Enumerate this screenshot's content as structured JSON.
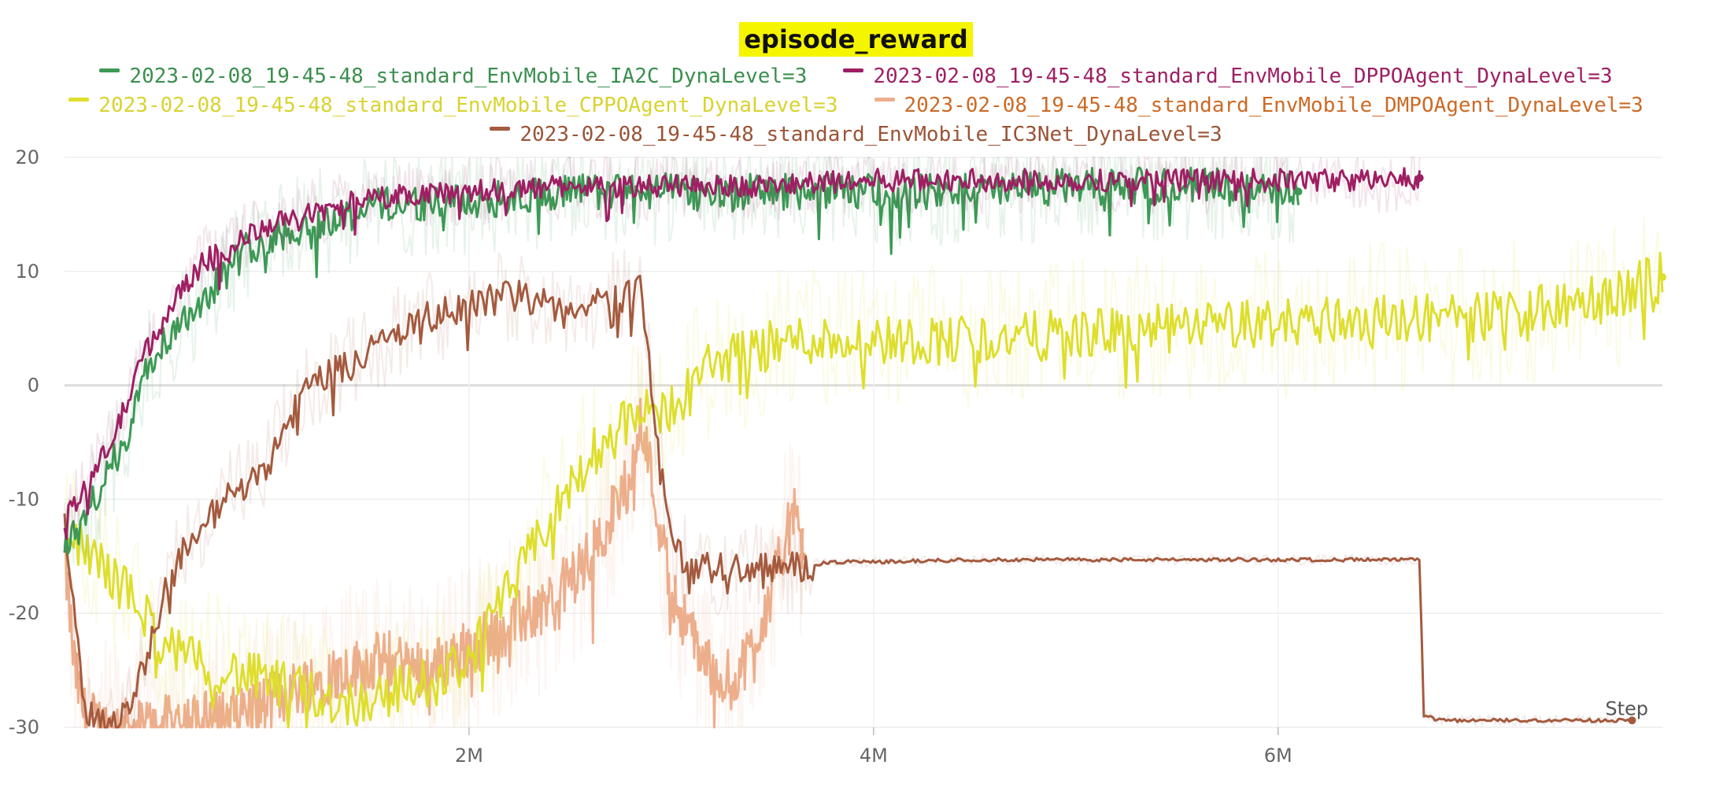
{
  "chart_data": {
    "type": "line",
    "title": "episode_reward",
    "xlabel": "Step",
    "ylabel": "",
    "xlim": [
      0,
      7900000
    ],
    "ylim": [
      -30,
      20
    ],
    "x_ticks": [
      2000000,
      4000000,
      6000000
    ],
    "x_tick_labels": [
      "2M",
      "4M",
      "6M"
    ],
    "y_ticks": [
      -30,
      -20,
      -10,
      0,
      10,
      20
    ],
    "y_tick_labels": [
      "-30",
      "-20",
      "-10",
      "0",
      "10",
      "20"
    ],
    "grid": true,
    "legend_position": "top",
    "series": [
      {
        "name": "2023-02-08_19-45-48_standard_EnvMobile_IA2C_DynaLevel=3",
        "color": "#3c9a55",
        "label_color": "#3a8f4e",
        "points": [
          [
            0,
            -14
          ],
          [
            100000,
            -12
          ],
          [
            200000,
            -8
          ],
          [
            300000,
            -5
          ],
          [
            400000,
            2
          ],
          [
            500000,
            4
          ],
          [
            600000,
            6
          ],
          [
            700000,
            8
          ],
          [
            800000,
            10
          ],
          [
            900000,
            12
          ],
          [
            1000000,
            13
          ],
          [
            1200000,
            14
          ],
          [
            1400000,
            15
          ],
          [
            1600000,
            16
          ],
          [
            1800000,
            16
          ],
          [
            2000000,
            16
          ],
          [
            2200000,
            16.5
          ],
          [
            2500000,
            17
          ],
          [
            3000000,
            17
          ],
          [
            3500000,
            17
          ],
          [
            4000000,
            17
          ],
          [
            4500000,
            17
          ],
          [
            5000000,
            17.5
          ],
          [
            5500000,
            17.5
          ],
          [
            6000000,
            17.5
          ],
          [
            6100000,
            17
          ]
        ]
      },
      {
        "name": "2023-02-08_19-45-48_standard_EnvMobile_DPPOAgent_DynaLevel=3",
        "color": "#9e1f63",
        "label_color": "#9e1f63",
        "points": [
          [
            0,
            -12
          ],
          [
            100000,
            -9
          ],
          [
            200000,
            -6
          ],
          [
            300000,
            -2
          ],
          [
            400000,
            3
          ],
          [
            500000,
            6
          ],
          [
            600000,
            9
          ],
          [
            700000,
            11
          ],
          [
            800000,
            12
          ],
          [
            900000,
            13
          ],
          [
            1000000,
            14
          ],
          [
            1200000,
            15
          ],
          [
            1400000,
            16
          ],
          [
            1600000,
            16.5
          ],
          [
            1800000,
            17
          ],
          [
            2000000,
            17
          ],
          [
            2500000,
            17.5
          ],
          [
            3000000,
            17.5
          ],
          [
            3500000,
            17.5
          ],
          [
            4000000,
            18
          ],
          [
            4500000,
            18
          ],
          [
            5000000,
            18
          ],
          [
            5500000,
            18
          ],
          [
            6000000,
            18
          ],
          [
            6500000,
            18
          ],
          [
            6700000,
            18.2
          ]
        ]
      },
      {
        "name": "2023-02-08_19-45-48_standard_EnvMobile_CPPOAgent_DynaLevel=3",
        "color": "#dede2c",
        "label_color": "#d8d330",
        "points": [
          [
            0,
            -13
          ],
          [
            200000,
            -16
          ],
          [
            400000,
            -20
          ],
          [
            500000,
            -23
          ],
          [
            600000,
            -24
          ],
          [
            800000,
            -25
          ],
          [
            1000000,
            -26
          ],
          [
            1200000,
            -27
          ],
          [
            1400000,
            -28
          ],
          [
            1600000,
            -27
          ],
          [
            1800000,
            -26
          ],
          [
            2000000,
            -24
          ],
          [
            2200000,
            -18
          ],
          [
            2400000,
            -12
          ],
          [
            2600000,
            -6
          ],
          [
            2800000,
            -3
          ],
          [
            3000000,
            -2
          ],
          [
            3200000,
            2
          ],
          [
            3400000,
            3
          ],
          [
            3600000,
            4
          ],
          [
            4000000,
            4
          ],
          [
            4500000,
            4
          ],
          [
            5000000,
            4.5
          ],
          [
            5500000,
            5
          ],
          [
            6000000,
            5.5
          ],
          [
            6500000,
            6
          ],
          [
            7000000,
            6
          ],
          [
            7500000,
            7
          ],
          [
            7900000,
            9.5
          ]
        ]
      },
      {
        "name": "2023-02-08_19-45-48_standard_EnvMobile_DMPOAgent_DynaLevel=3",
        "color": "#edae8c",
        "label_color": "#cc6a26",
        "points": [
          [
            0,
            -15
          ],
          [
            50000,
            -25
          ],
          [
            100000,
            -29
          ],
          [
            200000,
            -30
          ],
          [
            400000,
            -30
          ],
          [
            600000,
            -29.5
          ],
          [
            800000,
            -29
          ],
          [
            1000000,
            -28
          ],
          [
            1200000,
            -26
          ],
          [
            1400000,
            -25
          ],
          [
            1600000,
            -24
          ],
          [
            1800000,
            -25
          ],
          [
            2000000,
            -23
          ],
          [
            2200000,
            -21
          ],
          [
            2400000,
            -19
          ],
          [
            2600000,
            -15
          ],
          [
            2800000,
            -8
          ],
          [
            2850000,
            -2
          ],
          [
            2900000,
            -8
          ],
          [
            3000000,
            -18
          ],
          [
            3100000,
            -22
          ],
          [
            3200000,
            -25
          ],
          [
            3300000,
            -26
          ],
          [
            3400000,
            -23
          ],
          [
            3500000,
            -18
          ],
          [
            3600000,
            -11
          ],
          [
            3650000,
            -15
          ]
        ]
      },
      {
        "name": "2023-02-08_19-45-48_standard_EnvMobile_IC3Net_DynaLevel=3",
        "color": "#a45a3e",
        "label_color": "#9a5436",
        "points": [
          [
            0,
            -12
          ],
          [
            100000,
            -28
          ],
          [
            200000,
            -30
          ],
          [
            300000,
            -29
          ],
          [
            400000,
            -24
          ],
          [
            500000,
            -18
          ],
          [
            600000,
            -14
          ],
          [
            800000,
            -10
          ],
          [
            1000000,
            -7
          ],
          [
            1200000,
            0
          ],
          [
            1400000,
            2
          ],
          [
            1600000,
            4
          ],
          [
            1800000,
            6
          ],
          [
            2000000,
            7
          ],
          [
            2200000,
            8
          ],
          [
            2400000,
            7
          ],
          [
            2600000,
            7
          ],
          [
            2800000,
            8
          ],
          [
            2850000,
            9
          ],
          [
            2900000,
            0
          ],
          [
            3000000,
            -14
          ],
          [
            3100000,
            -16
          ],
          [
            3200000,
            -16
          ],
          [
            3400000,
            -16
          ],
          [
            3600000,
            -16
          ],
          [
            3800000,
            -15.5
          ],
          [
            4000000,
            -15.5
          ],
          [
            4500000,
            -15.3
          ],
          [
            5000000,
            -15.3
          ],
          [
            5500000,
            -15.3
          ],
          [
            6000000,
            -15.3
          ],
          [
            6500000,
            -15.3
          ],
          [
            6700000,
            -15.3
          ],
          [
            6720000,
            -29
          ],
          [
            6800000,
            -29.4
          ],
          [
            7000000,
            -29.4
          ],
          [
            7500000,
            -29.4
          ],
          [
            7750000,
            -29.4
          ]
        ]
      }
    ]
  }
}
